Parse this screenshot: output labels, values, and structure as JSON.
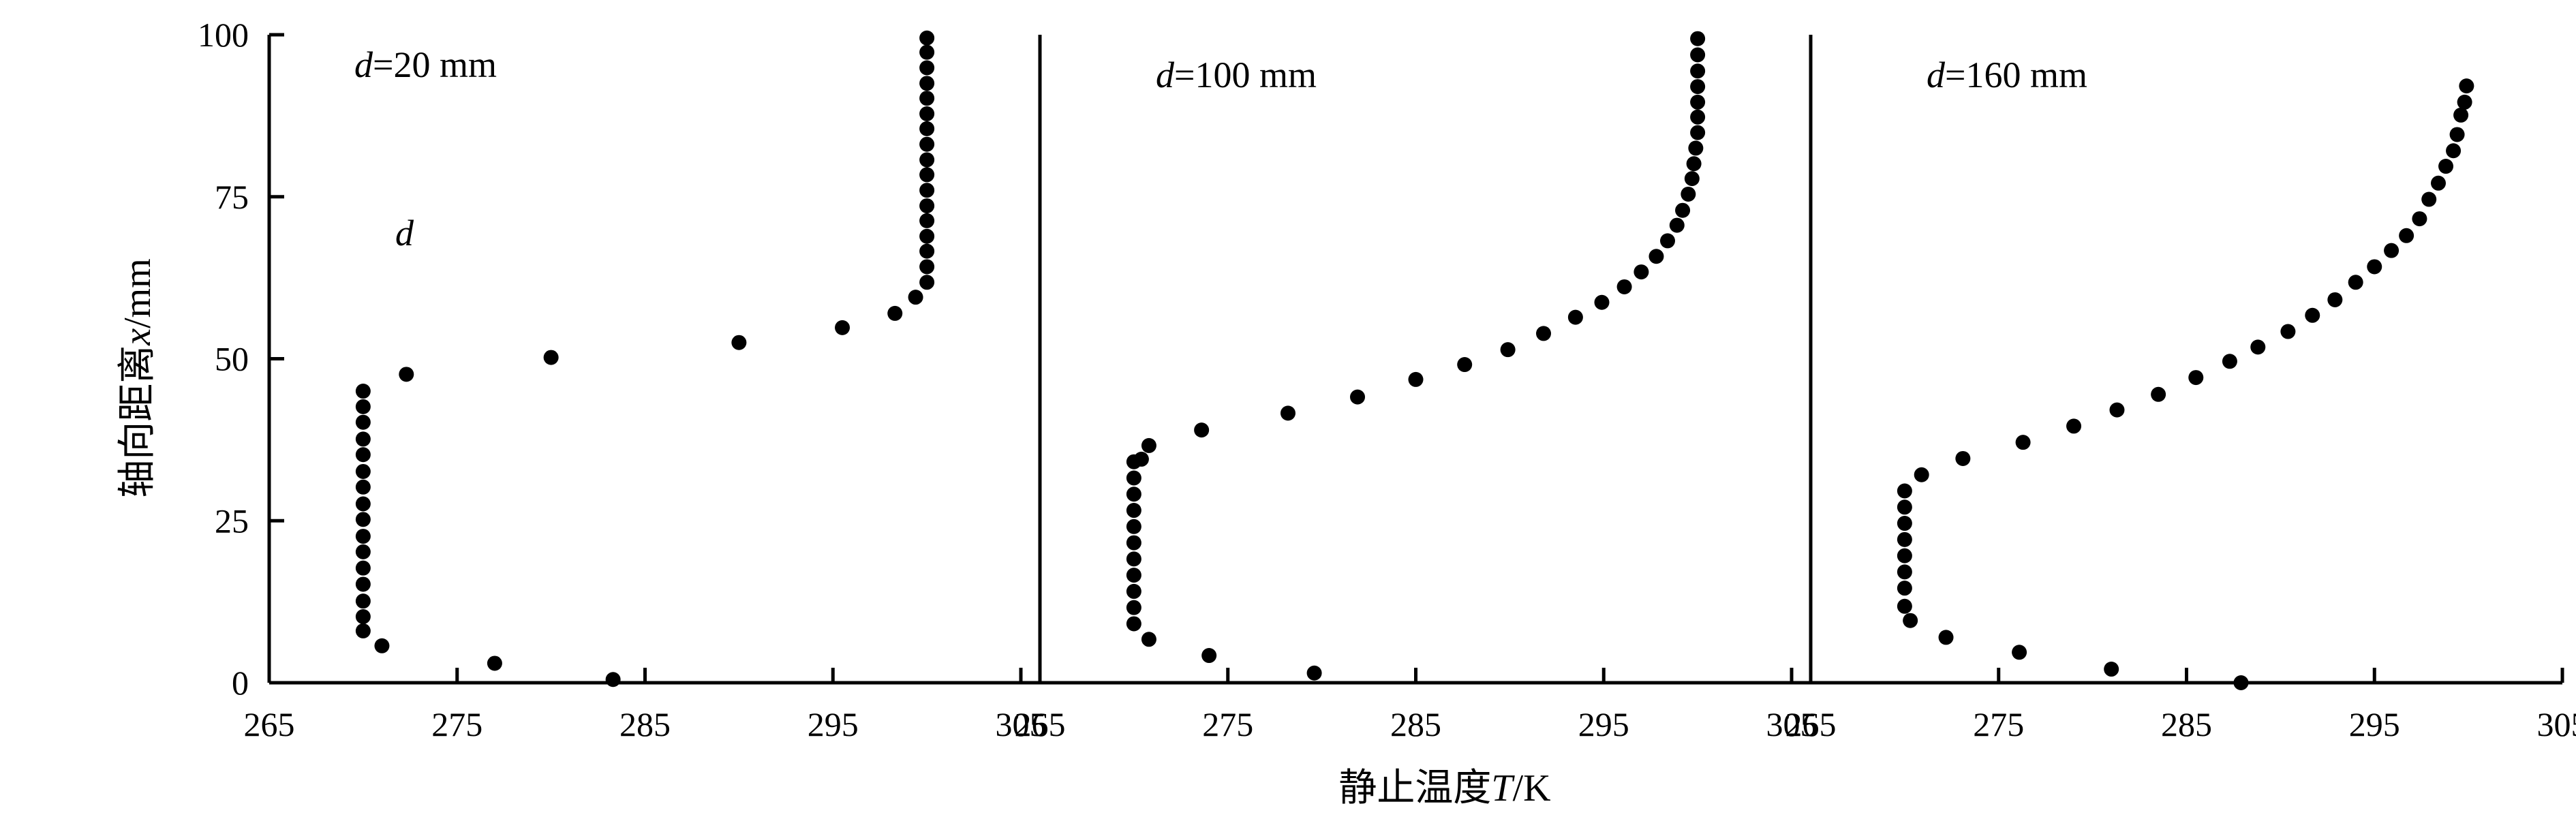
{
  "chart_data": {
    "type": "scatter",
    "xlabel": "静止温度T/K",
    "ylabel": "轴向距离x/mm",
    "xlim": [
      265,
      305
    ],
    "ylim": [
      0,
      100
    ],
    "xticks": [
      265,
      275,
      285,
      295,
      305
    ],
    "yticks": [
      0,
      25,
      50,
      75,
      100
    ],
    "grid": false,
    "legend": "none",
    "marker_color": "#000000",
    "panels": [
      {
        "label_prefix": "d",
        "label_suffix": "=20 mm",
        "annotation": "d",
        "x": [
          283.3,
          277.0,
          271.0,
          270.0,
          270.0,
          270.0,
          270.0,
          270.0,
          270.0,
          270.0,
          270.0,
          270.0,
          270.0,
          270.0,
          270.0,
          270.0,
          270.0,
          270.0,
          270.0,
          272.3,
          280.0,
          290.0,
          295.5,
          298.3,
          299.4,
          300.0,
          300.0,
          300.0,
          300.0,
          300.0,
          300.0,
          300.0,
          300.0,
          300.0,
          300.0,
          300.0,
          300.0,
          300.0,
          300.0,
          300.0,
          300.0,
          300.0
        ],
        "y": [
          0.5,
          3.0,
          5.7,
          8.0,
          10.2,
          12.6,
          15.2,
          17.7,
          20.2,
          22.6,
          25.2,
          27.6,
          30.2,
          32.6,
          35.2,
          37.6,
          40.2,
          42.6,
          45.0,
          47.6,
          50.2,
          52.5,
          54.8,
          57.0,
          59.5,
          61.8,
          64.2,
          66.6,
          68.9,
          71.3,
          73.6,
          76.0,
          78.4,
          80.7,
          83.1,
          85.5,
          87.8,
          90.2,
          92.5,
          94.9,
          97.3,
          99.5
        ]
      },
      {
        "label_prefix": "d",
        "label_suffix": "=100 mm",
        "x": [
          279.6,
          274.0,
          270.8,
          270.0,
          270.0,
          270.0,
          270.0,
          270.0,
          270.0,
          270.0,
          270.0,
          270.0,
          270.0,
          270.0,
          270.4,
          270.8,
          273.6,
          278.2,
          281.9,
          285.0,
          287.6,
          289.9,
          291.8,
          293.5,
          294.9,
          296.1,
          297.0,
          297.8,
          298.4,
          298.9,
          299.2,
          299.5,
          299.7,
          299.8,
          299.9,
          300.0,
          300.0,
          300.0,
          300.0,
          300.0,
          300.0,
          300.0
        ],
        "y": [
          1.5,
          4.2,
          6.7,
          9.1,
          11.6,
          14.1,
          16.6,
          19.1,
          21.6,
          24.1,
          26.6,
          29.1,
          31.6,
          34.1,
          34.5,
          36.6,
          39.0,
          41.6,
          44.1,
          46.8,
          49.1,
          51.4,
          53.9,
          56.4,
          58.7,
          61.1,
          63.4,
          65.8,
          68.2,
          70.6,
          72.9,
          75.4,
          77.8,
          80.1,
          82.5,
          84.9,
          87.3,
          89.6,
          92.0,
          94.4,
          96.9,
          99.4
        ]
      },
      {
        "label_prefix": "d",
        "label_suffix": "=160 mm",
        "x": [
          287.9,
          281.0,
          276.1,
          272.2,
          270.3,
          270.0,
          270.0,
          270.0,
          270.0,
          270.0,
          270.0,
          270.0,
          270.0,
          270.9,
          273.1,
          276.3,
          279.0,
          281.3,
          283.5,
          285.5,
          287.3,
          288.8,
          290.4,
          291.7,
          292.9,
          294.0,
          295.0,
          295.9,
          296.7,
          297.4,
          297.9,
          298.4,
          298.8,
          299.2,
          299.4,
          299.6,
          299.8,
          299.9
        ],
        "y": [
          0.0,
          2.1,
          4.7,
          7.0,
          9.6,
          11.8,
          14.6,
          17.1,
          19.6,
          22.1,
          24.6,
          27.1,
          29.6,
          32.1,
          34.6,
          37.1,
          39.6,
          42.1,
          44.5,
          47.1,
          49.6,
          51.8,
          54.2,
          56.7,
          59.1,
          61.8,
          64.2,
          66.7,
          69.0,
          71.6,
          74.6,
          77.1,
          79.7,
          82.1,
          84.6,
          87.6,
          89.6,
          92.1
        ]
      }
    ]
  }
}
